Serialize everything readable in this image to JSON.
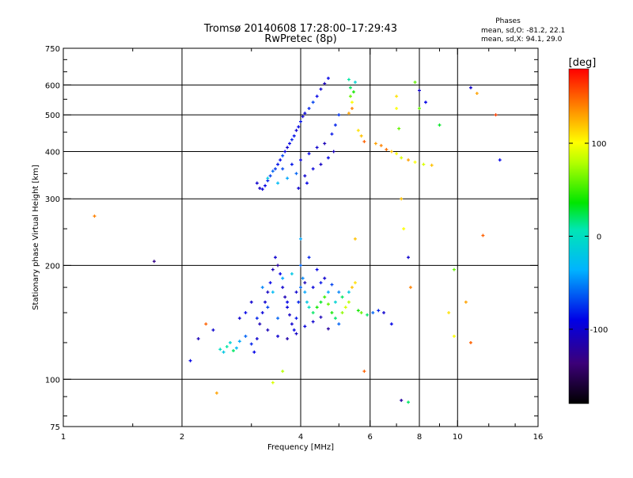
{
  "chart_data": {
    "type": "scatter",
    "title": "Tromsø 20140608 17:28:00–17:29:43",
    "subtitle": "RwPretec (8p)",
    "xlabel": "Frequency [MHz]",
    "ylabel": "Stationary phase Virtual Height [km]",
    "x_scale": "log",
    "y_scale": "log",
    "xlim": [
      1,
      16
    ],
    "ylim": [
      75,
      750
    ],
    "x_ticks": [
      1,
      2,
      4,
      6,
      8,
      10,
      16
    ],
    "y_ticks": [
      75,
      100,
      200,
      300,
      400,
      500,
      600,
      750
    ],
    "x_gridlines": [
      2,
      4,
      6,
      8,
      10
    ],
    "y_gridlines": [
      100,
      200,
      300,
      400,
      500,
      600
    ],
    "grid": true,
    "stats": {
      "heading": "Phases",
      "line1": "mean, sd,O: -81.2, 22.1",
      "line2": "mean, sd,X:  94.1, 29.0"
    },
    "colorbar": {
      "label": "[deg]",
      "range": [
        -180,
        180
      ],
      "ticks": [
        100,
        0,
        -100
      ],
      "tick_labels": [
        "100",
        "0",
        "-100"
      ]
    },
    "series": [
      {
        "points": [
          [
            3.1,
            330,
            -100
          ],
          [
            3.15,
            320,
            -105
          ],
          [
            3.2,
            318,
            -95
          ],
          [
            3.25,
            325,
            -90
          ],
          [
            3.3,
            335,
            -80
          ],
          [
            3.35,
            345,
            -70
          ],
          [
            3.4,
            355,
            -60
          ],
          [
            3.45,
            360,
            -75
          ],
          [
            3.5,
            370,
            -85
          ],
          [
            3.55,
            380,
            -90
          ],
          [
            3.6,
            390,
            -70
          ],
          [
            3.65,
            400,
            -95
          ],
          [
            3.7,
            410,
            -100
          ],
          [
            3.75,
            420,
            -90
          ],
          [
            3.8,
            430,
            -80
          ],
          [
            3.85,
            440,
            -85
          ],
          [
            3.9,
            455,
            -100
          ],
          [
            3.95,
            465,
            -90
          ],
          [
            4.0,
            480,
            -85
          ],
          [
            4.05,
            495,
            -100
          ],
          [
            4.1,
            505,
            -95
          ],
          [
            4.2,
            520,
            -80
          ],
          [
            4.3,
            540,
            -70
          ],
          [
            4.4,
            560,
            -90
          ],
          [
            4.5,
            585,
            -100
          ],
          [
            4.6,
            605,
            -110
          ],
          [
            4.7,
            625,
            -90
          ],
          [
            3.6,
            360,
            -70
          ],
          [
            3.8,
            370,
            -85
          ],
          [
            4.0,
            380,
            -95
          ],
          [
            4.2,
            395,
            -90
          ],
          [
            4.4,
            410,
            -100
          ],
          [
            4.6,
            420,
            -110
          ],
          [
            4.8,
            445,
            -85
          ],
          [
            4.9,
            470,
            -80
          ],
          [
            5.0,
            500,
            -75
          ],
          [
            3.9,
            350,
            -60
          ],
          [
            4.1,
            345,
            -100
          ],
          [
            4.3,
            360,
            -95
          ],
          [
            4.5,
            370,
            -105
          ],
          [
            4.7,
            385,
            -90
          ],
          [
            4.85,
            400,
            -110
          ],
          [
            3.7,
            340,
            -40
          ],
          [
            3.5,
            330,
            -30
          ],
          [
            3.3,
            340,
            -20
          ],
          [
            4.15,
            330,
            -90
          ],
          [
            3.95,
            320,
            -100
          ],
          [
            5.3,
            620,
            10
          ],
          [
            5.35,
            590,
            20
          ],
          [
            5.35,
            560,
            60
          ],
          [
            5.4,
            540,
            100
          ],
          [
            5.4,
            520,
            140
          ],
          [
            5.3,
            505,
            130
          ],
          [
            5.45,
            575,
            40
          ],
          [
            5.5,
            610,
            -10
          ],
          [
            5.6,
            455,
            110
          ],
          [
            5.7,
            440,
            120
          ],
          [
            5.8,
            425,
            150
          ],
          [
            6.2,
            420,
            130
          ],
          [
            6.4,
            415,
            140
          ],
          [
            6.6,
            405,
            145
          ],
          [
            6.8,
            400,
            120
          ],
          [
            7.0,
            395,
            100
          ],
          [
            7.2,
            385,
            90
          ],
          [
            7.5,
            380,
            130
          ],
          [
            7.8,
            375,
            100
          ],
          [
            8.2,
            370,
            90
          ],
          [
            8.6,
            368,
            120
          ],
          [
            7.0,
            560,
            110
          ],
          [
            7.0,
            520,
            100
          ],
          [
            7.1,
            460,
            60
          ],
          [
            7.2,
            300,
            120
          ],
          [
            7.3,
            250,
            100
          ],
          [
            7.5,
            210,
            -100
          ],
          [
            7.6,
            175,
            140
          ],
          [
            8.0,
            580,
            -100
          ],
          [
            8.0,
            520,
            60
          ],
          [
            8.3,
            540,
            -90
          ],
          [
            9.0,
            470,
            30
          ],
          [
            10.8,
            590,
            -100
          ],
          [
            11.2,
            570,
            130
          ],
          [
            12.5,
            500,
            160
          ],
          [
            12.8,
            380,
            -90
          ],
          [
            11.6,
            240,
            150
          ],
          [
            7.2,
            88,
            -120
          ],
          [
            7.8,
            610,
            60
          ],
          [
            2.5,
            120,
            0
          ],
          [
            2.55,
            118,
            -20
          ],
          [
            2.6,
            122,
            10
          ],
          [
            2.65,
            125,
            -10
          ],
          [
            2.7,
            119,
            20
          ],
          [
            2.75,
            121,
            -30
          ],
          [
            2.8,
            126,
            -40
          ],
          [
            2.9,
            130,
            -60
          ],
          [
            3.0,
            124,
            -80
          ],
          [
            3.05,
            118,
            -90
          ],
          [
            3.1,
            128,
            -100
          ],
          [
            3.15,
            140,
            -110
          ],
          [
            3.2,
            150,
            -95
          ],
          [
            3.25,
            160,
            -100
          ],
          [
            3.3,
            170,
            -105
          ],
          [
            3.35,
            180,
            -90
          ],
          [
            3.4,
            195,
            -110
          ],
          [
            3.45,
            210,
            -100
          ],
          [
            3.5,
            200,
            -120
          ],
          [
            3.55,
            190,
            -90
          ],
          [
            3.6,
            175,
            -100
          ],
          [
            3.65,
            165,
            -110
          ],
          [
            3.7,
            155,
            -95
          ],
          [
            3.75,
            148,
            -105
          ],
          [
            3.8,
            140,
            -100
          ],
          [
            3.85,
            135,
            -90
          ],
          [
            3.9,
            145,
            -85
          ],
          [
            3.95,
            160,
            -80
          ],
          [
            4.0,
            175,
            -60
          ],
          [
            4.05,
            185,
            -50
          ],
          [
            4.1,
            170,
            -40
          ],
          [
            4.15,
            160,
            -20
          ],
          [
            4.2,
            155,
            0
          ],
          [
            4.3,
            150,
            20
          ],
          [
            4.4,
            155,
            40
          ],
          [
            4.5,
            160,
            30
          ],
          [
            4.6,
            165,
            50
          ],
          [
            4.7,
            158,
            60
          ],
          [
            4.8,
            150,
            40
          ],
          [
            4.9,
            145,
            20
          ],
          [
            5.0,
            140,
            -60
          ],
          [
            5.1,
            150,
            70
          ],
          [
            5.2,
            155,
            90
          ],
          [
            5.3,
            160,
            80
          ],
          [
            5.4,
            175,
            120
          ],
          [
            5.5,
            180,
            110
          ],
          [
            5.6,
            152,
            40
          ],
          [
            5.7,
            150,
            60
          ],
          [
            5.9,
            148,
            20
          ],
          [
            6.1,
            150,
            -60
          ],
          [
            6.3,
            152,
            -80
          ],
          [
            6.5,
            150,
            -100
          ],
          [
            6.8,
            140,
            -90
          ],
          [
            3.2,
            175,
            -50
          ],
          [
            3.4,
            170,
            -30
          ],
          [
            3.6,
            185,
            -40
          ],
          [
            3.8,
            190,
            -20
          ],
          [
            4.0,
            200,
            -60
          ],
          [
            4.2,
            210,
            -80
          ],
          [
            4.4,
            195,
            -90
          ],
          [
            4.6,
            185,
            -100
          ],
          [
            4.8,
            178,
            -70
          ],
          [
            5.0,
            170,
            -50
          ],
          [
            3.0,
            160,
            -100
          ],
          [
            2.9,
            150,
            -90
          ],
          [
            2.8,
            145,
            -100
          ],
          [
            3.3,
            135,
            -110
          ],
          [
            3.5,
            130,
            -100
          ],
          [
            3.7,
            128,
            -115
          ],
          [
            3.9,
            132,
            -105
          ],
          [
            4.1,
            138,
            -95
          ],
          [
            4.3,
            142,
            -100
          ],
          [
            4.5,
            146,
            -110
          ],
          [
            4.7,
            136,
            -120
          ],
          [
            2.4,
            135,
            -100
          ],
          [
            2.3,
            140,
            150
          ],
          [
            2.2,
            128,
            -110
          ],
          [
            2.1,
            112,
            -90
          ],
          [
            2.45,
            92,
            130
          ],
          [
            3.4,
            98,
            90
          ],
          [
            3.6,
            105,
            80
          ],
          [
            5.8,
            105,
            150
          ],
          [
            7.5,
            87,
            20
          ],
          [
            9.8,
            195,
            60
          ],
          [
            9.5,
            150,
            110
          ],
          [
            9.8,
            130,
            100
          ],
          [
            10.5,
            160,
            130
          ],
          [
            10.8,
            125,
            150
          ],
          [
            1.2,
            270,
            140
          ],
          [
            1.7,
            205,
            -130
          ],
          [
            5.5,
            235,
            120
          ],
          [
            4.0,
            235,
            -40
          ],
          [
            3.1,
            145,
            -80
          ],
          [
            3.3,
            155,
            -70
          ],
          [
            3.5,
            145,
            -60
          ],
          [
            3.7,
            160,
            -90
          ],
          [
            3.9,
            170,
            -100
          ],
          [
            4.1,
            180,
            -110
          ],
          [
            4.3,
            175,
            -95
          ],
          [
            4.5,
            180,
            -85
          ],
          [
            4.7,
            170,
            -40
          ],
          [
            4.9,
            160,
            -10
          ],
          [
            5.1,
            165,
            20
          ],
          [
            5.3,
            170,
            -20
          ]
        ]
      }
    ]
  }
}
